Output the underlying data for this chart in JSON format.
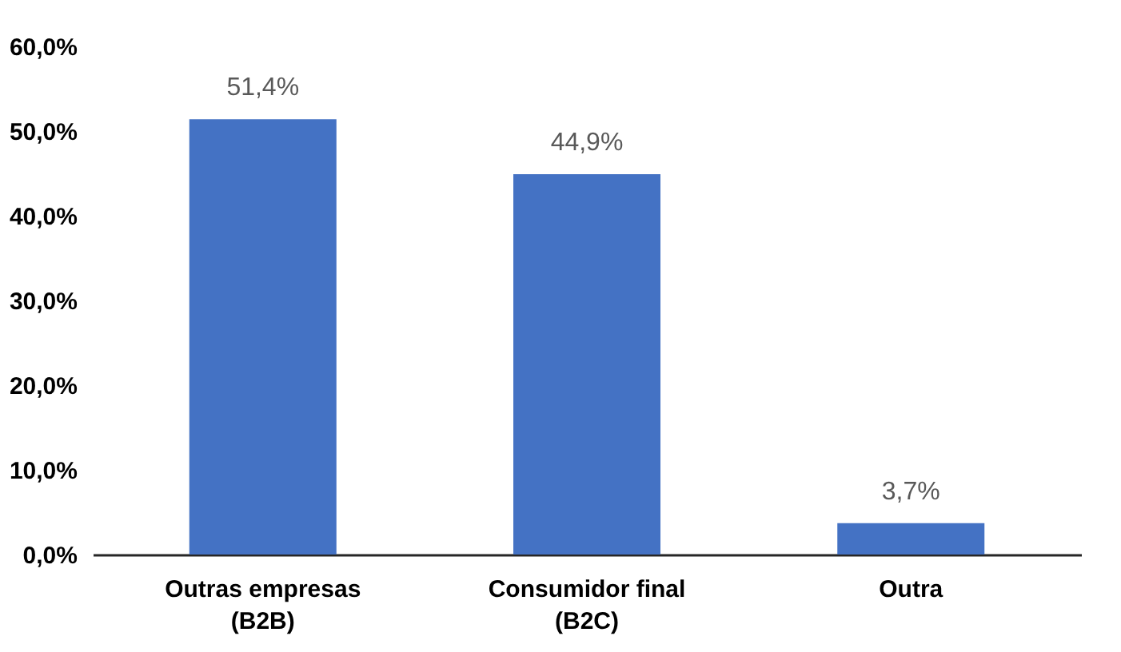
{
  "chart_data": {
    "type": "bar",
    "categories": [
      "Outras empresas (B2B)",
      "Consumidor final (B2C)",
      "Outra"
    ],
    "values": [
      51.4,
      44.9,
      3.7
    ],
    "color": "#4472c4",
    "value_labels": [
      "51,4%",
      "44,9%",
      "3,7%"
    ],
    "ylim": [
      0,
      60
    ],
    "yticks": [
      {
        "value": 0,
        "label": "0,0%"
      },
      {
        "value": 10,
        "label": "10,0%"
      },
      {
        "value": 20,
        "label": "20,0%"
      },
      {
        "value": 30,
        "label": "30,0%"
      },
      {
        "value": 40,
        "label": "40,0%"
      },
      {
        "value": 50,
        "label": "50,0%"
      },
      {
        "value": 60,
        "label": "60,0%"
      }
    ],
    "grid": false
  }
}
